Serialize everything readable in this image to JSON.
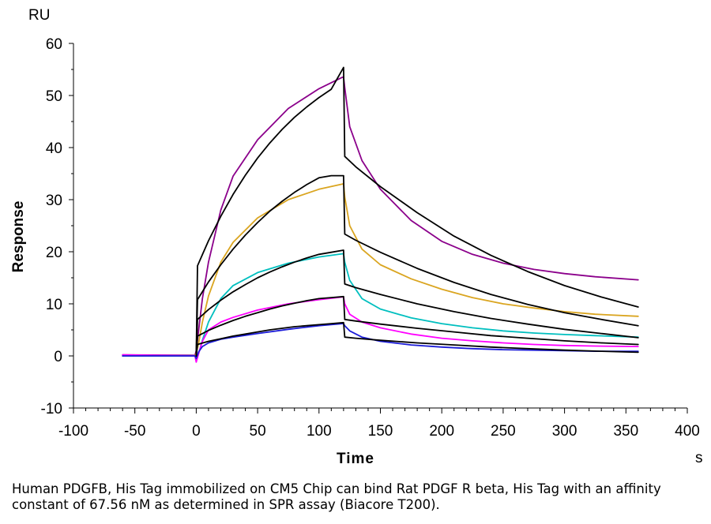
{
  "chart_data": {
    "type": "line",
    "xlabel": "Time",
    "ylabel": "Response",
    "x_unit": "s",
    "y_unit": "RU",
    "xlim": [
      -100,
      400
    ],
    "ylim": [
      -10,
      60
    ],
    "x_ticks": [
      -100,
      -50,
      0,
      50,
      100,
      150,
      200,
      250,
      300,
      350,
      400
    ],
    "y_ticks": [
      -10,
      0,
      10,
      20,
      30,
      40,
      50,
      60
    ],
    "x_tick_labels": [
      "-100",
      "-50",
      "0",
      "50",
      "100",
      "150",
      "200",
      "250",
      "300",
      "350",
      "400"
    ],
    "y_tick_labels": [
      "-10",
      "0",
      "10",
      "20",
      "30",
      "40",
      "50",
      "60"
    ],
    "grid": false,
    "legend": "none",
    "series": [
      {
        "color": "#8B008B",
        "width": 1.8,
        "x": [
          -60,
          -1,
          0,
          2,
          5,
          10,
          20,
          30,
          50,
          75,
          100,
          119,
          120,
          121,
          125,
          135,
          150,
          175,
          200,
          225,
          250,
          275,
          300,
          325,
          360
        ],
        "y": [
          0.2,
          0.1,
          1.0,
          5.0,
          11.0,
          18.0,
          28.0,
          34.5,
          41.5,
          47.5,
          51.3,
          53.5,
          53.5,
          51.5,
          44.0,
          37.5,
          32.0,
          26.0,
          22.0,
          19.5,
          17.8,
          16.6,
          15.8,
          15.2,
          14.6
        ]
      },
      {
        "color": "#DAA520",
        "width": 1.8,
        "x": [
          -60,
          -1,
          0,
          2,
          5,
          10,
          20,
          30,
          50,
          75,
          100,
          119,
          120,
          121,
          125,
          135,
          150,
          175,
          200,
          225,
          250,
          275,
          300,
          325,
          360
        ],
        "y": [
          0.0,
          0.0,
          0.5,
          2.5,
          6.5,
          11.5,
          18.0,
          21.8,
          26.5,
          30.0,
          32.0,
          33.0,
          33.0,
          30.5,
          25.0,
          20.5,
          17.5,
          14.8,
          12.8,
          11.2,
          10.0,
          9.2,
          8.5,
          8.0,
          7.6
        ]
      },
      {
        "color": "#00BFBF",
        "width": 1.8,
        "x": [
          -60,
          -1,
          0,
          2,
          5,
          10,
          20,
          30,
          50,
          75,
          100,
          119,
          120,
          121,
          125,
          135,
          150,
          175,
          200,
          225,
          250,
          275,
          300,
          325,
          360
        ],
        "y": [
          0.0,
          0.0,
          -0.8,
          0.5,
          3.0,
          6.5,
          11.0,
          13.5,
          16.0,
          17.8,
          19.0,
          19.6,
          19.6,
          18.0,
          14.5,
          11.0,
          9.0,
          7.3,
          6.2,
          5.4,
          4.8,
          4.4,
          4.1,
          3.9,
          3.6
        ]
      },
      {
        "color": "#FF00FF",
        "width": 1.8,
        "x": [
          -60,
          -1,
          0,
          2,
          5,
          10,
          20,
          30,
          50,
          75,
          100,
          119,
          120,
          121,
          125,
          135,
          150,
          175,
          200,
          225,
          250,
          275,
          300,
          325,
          360
        ],
        "y": [
          0.2,
          0.0,
          -1.2,
          0.5,
          2.8,
          5.0,
          6.5,
          7.4,
          8.8,
          10.0,
          10.8,
          11.3,
          11.3,
          10.0,
          8.0,
          6.5,
          5.4,
          4.2,
          3.4,
          2.9,
          2.5,
          2.2,
          2.0,
          1.9,
          1.8
        ]
      },
      {
        "color": "#1C1CD8",
        "width": 1.8,
        "x": [
          -60,
          -1,
          0,
          2,
          5,
          10,
          20,
          30,
          50,
          75,
          100,
          119,
          120,
          121,
          125,
          135,
          150,
          175,
          200,
          225,
          250,
          275,
          300,
          325,
          360
        ],
        "y": [
          0.0,
          0.0,
          -0.5,
          0.8,
          1.8,
          2.5,
          3.2,
          3.6,
          4.3,
          5.1,
          5.8,
          6.2,
          6.2,
          5.8,
          4.8,
          3.6,
          2.8,
          2.1,
          1.7,
          1.4,
          1.2,
          1.1,
          1.0,
          0.9,
          0.9
        ]
      },
      {
        "color": "#000000",
        "width": 1.8,
        "x": [
          0,
          1,
          10,
          20,
          30,
          40,
          50,
          60,
          70,
          80,
          90,
          100,
          110,
          120,
          121,
          130,
          150,
          180,
          210,
          240,
          270,
          300,
          330,
          360
        ],
        "y": [
          0.0,
          17.3,
          22.1,
          26.8,
          31.0,
          34.7,
          38.0,
          40.9,
          43.5,
          45.8,
          47.8,
          49.6,
          51.2,
          55.4,
          38.3,
          36.3,
          32.5,
          27.5,
          23.0,
          19.3,
          16.2,
          13.5,
          11.3,
          9.4
        ]
      },
      {
        "color": "#000000",
        "width": 1.8,
        "x": [
          0,
          1,
          10,
          20,
          30,
          40,
          50,
          60,
          70,
          80,
          90,
          100,
          110,
          120,
          121,
          130,
          150,
          180,
          210,
          240,
          270,
          300,
          330,
          360
        ],
        "y": [
          0.0,
          10.8,
          14.2,
          17.5,
          20.5,
          23.2,
          25.6,
          27.8,
          29.7,
          31.4,
          32.9,
          34.2,
          34.6,
          34.6,
          23.4,
          22.2,
          19.9,
          16.8,
          14.1,
          11.8,
          9.9,
          8.3,
          7.0,
          5.8
        ]
      },
      {
        "color": "#000000",
        "width": 1.8,
        "x": [
          0,
          1,
          10,
          20,
          30,
          40,
          50,
          60,
          70,
          80,
          90,
          100,
          110,
          120,
          121,
          130,
          150,
          180,
          210,
          240,
          270,
          300,
          330,
          360
        ],
        "y": [
          0.0,
          7.0,
          8.9,
          10.7,
          12.3,
          13.7,
          15.0,
          16.1,
          17.1,
          18.0,
          18.8,
          19.5,
          19.9,
          20.3,
          13.8,
          13.1,
          11.8,
          10.0,
          8.5,
          7.2,
          6.1,
          5.1,
          4.3,
          3.5
        ]
      },
      {
        "color": "#000000",
        "width": 1.8,
        "x": [
          0,
          1,
          10,
          20,
          30,
          40,
          50,
          60,
          70,
          80,
          90,
          100,
          110,
          120,
          121,
          130,
          150,
          180,
          210,
          240,
          270,
          300,
          330,
          360
        ],
        "y": [
          0.0,
          3.8,
          4.9,
          5.9,
          6.8,
          7.6,
          8.3,
          9.0,
          9.6,
          10.1,
          10.6,
          11.0,
          11.2,
          11.4,
          7.0,
          6.7,
          6.1,
          5.3,
          4.6,
          3.9,
          3.4,
          2.9,
          2.5,
          2.2
        ]
      },
      {
        "color": "#000000",
        "width": 1.8,
        "x": [
          0,
          1,
          10,
          20,
          30,
          40,
          50,
          60,
          70,
          80,
          90,
          100,
          110,
          120,
          121,
          130,
          150,
          180,
          210,
          240,
          270,
          300,
          330,
          360
        ],
        "y": [
          0.0,
          2.2,
          2.8,
          3.3,
          3.8,
          4.2,
          4.6,
          5.0,
          5.3,
          5.6,
          5.8,
          6.0,
          6.2,
          6.4,
          3.6,
          3.4,
          3.0,
          2.5,
          2.1,
          1.7,
          1.4,
          1.1,
          0.9,
          0.7
        ]
      }
    ]
  },
  "caption": "Human PDGFB, His Tag immobilized on CM5 Chip can bind Rat PDGF R beta, His Tag with an affinity constant of 67.56 nM as determined in SPR assay (Biacore T200)."
}
